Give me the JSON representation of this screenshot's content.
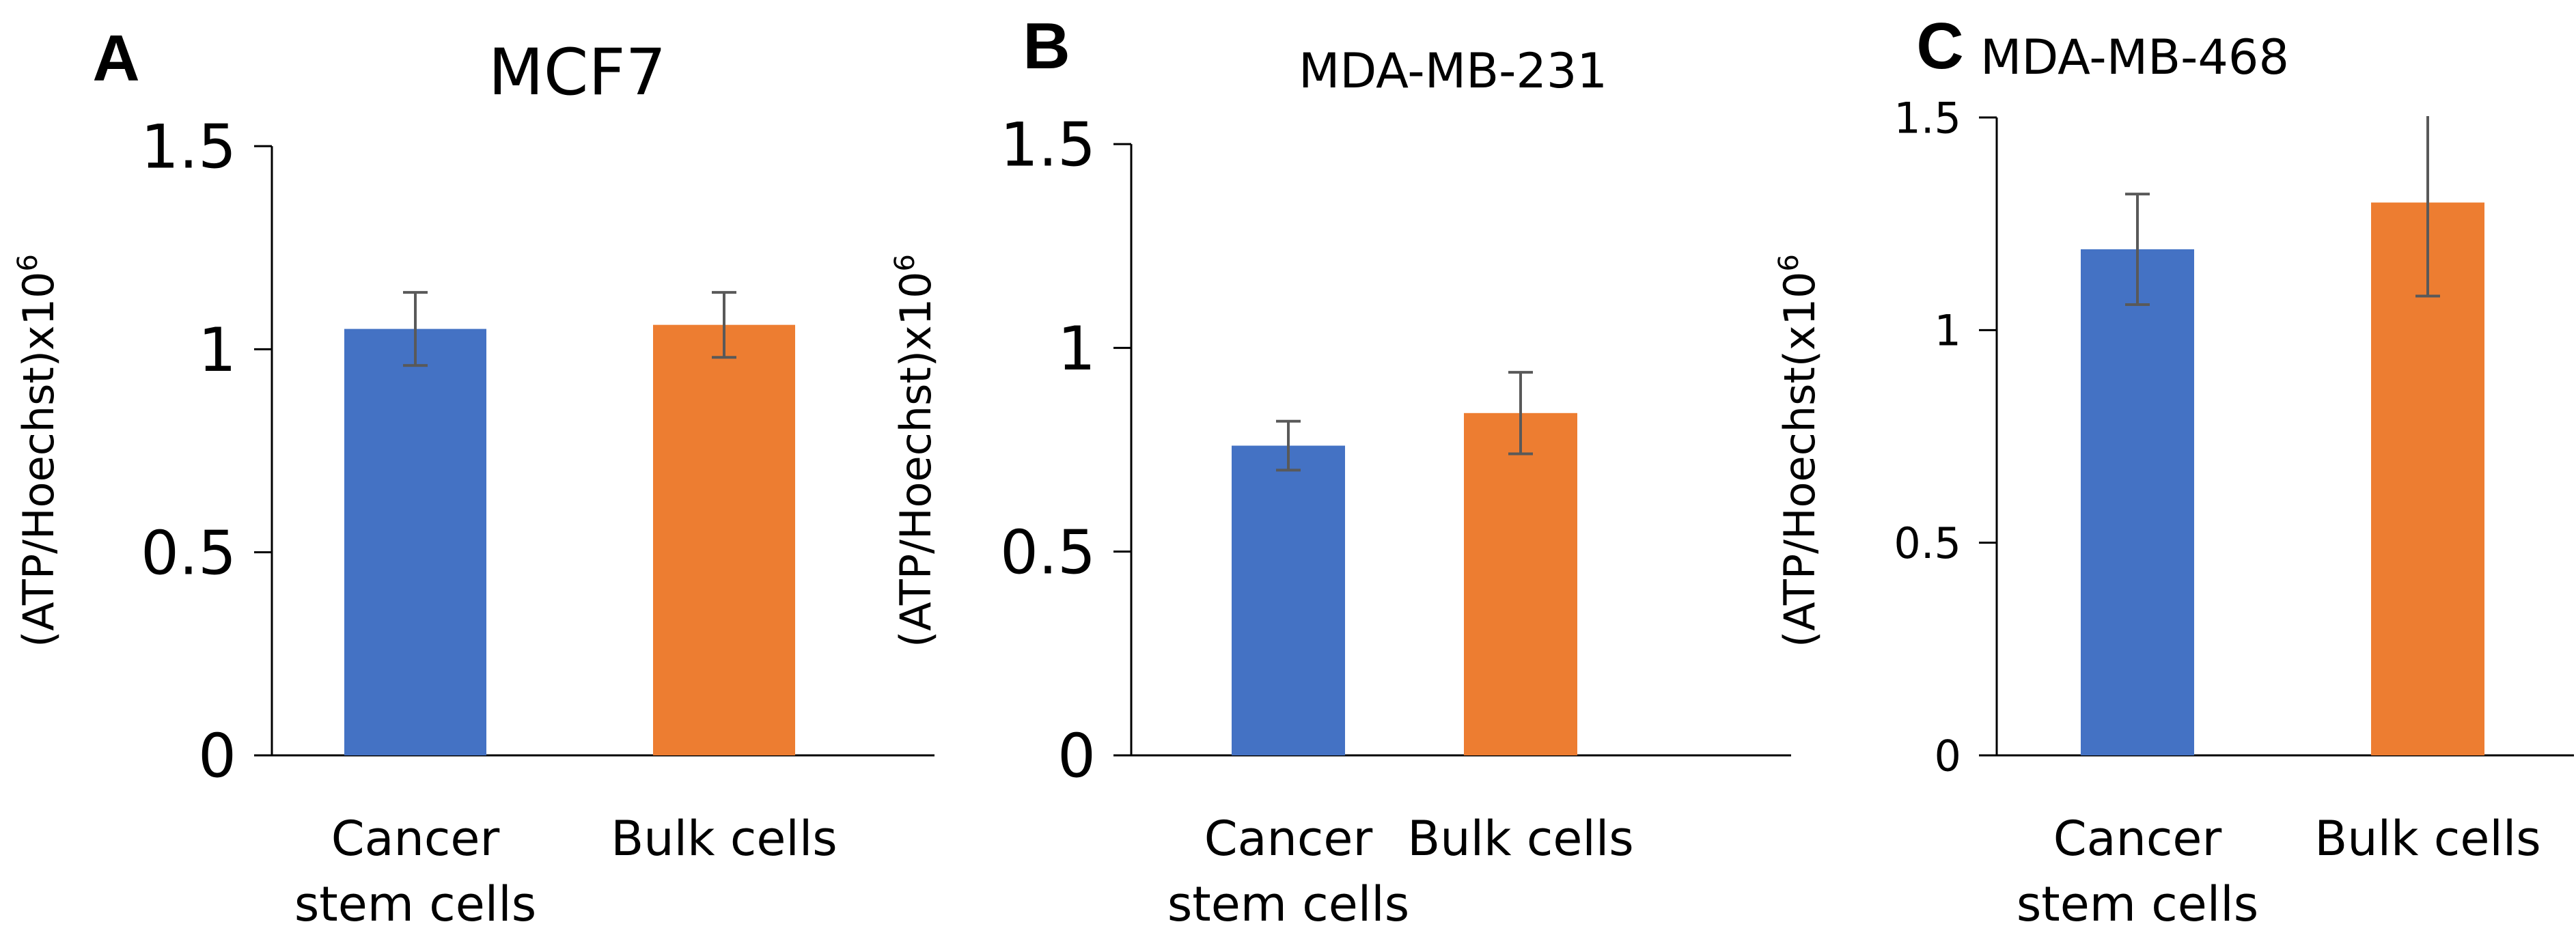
{
  "chart_data": [
    {
      "type": "bar",
      "panel": "A",
      "title": "MCF7",
      "ylabel": "(ATP/Hoechst)x10",
      "ylabel_sup": "6",
      "xlabel": "",
      "categories": [
        [
          "Cancer",
          "stem cells"
        ],
        [
          "Bulk cells"
        ]
      ],
      "values": [
        1.05,
        1.06
      ],
      "errors": [
        0.09,
        0.08
      ],
      "colors": [
        "#4472C4",
        "#ED7D31"
      ],
      "ylim": [
        0,
        1.5
      ],
      "yticks": [
        0,
        0.5,
        1,
        1.5
      ],
      "ytick_labels": [
        "0",
        "0.5",
        "1",
        "1.5"
      ],
      "grid": false
    },
    {
      "type": "bar",
      "panel": "B",
      "title": "MDA-MB-231",
      "ylabel": "(ATP/Hoechst)x10",
      "ylabel_sup": "6",
      "xlabel": "",
      "categories": [
        [
          "Cancer",
          "stem cells"
        ],
        [
          "Bulk cells"
        ]
      ],
      "values": [
        0.76,
        0.84
      ],
      "errors": [
        0.06,
        0.1
      ],
      "colors": [
        "#4472C4",
        "#ED7D31"
      ],
      "ylim": [
        0,
        1.5
      ],
      "yticks": [
        0,
        0.5,
        1,
        1.5
      ],
      "ytick_labels": [
        "0",
        "0.5",
        "1",
        "1.5"
      ],
      "grid": false
    },
    {
      "type": "bar",
      "panel": "C",
      "title": "MDA-MB-468",
      "ylabel": "(ATP/Hoechst(x10",
      "ylabel_sup": "6",
      "xlabel": "",
      "categories": [
        [
          "Cancer",
          "stem cells"
        ],
        [
          "Bulk cells"
        ]
      ],
      "values": [
        1.19,
        1.3
      ],
      "errors": [
        0.13,
        0.22
      ],
      "colors": [
        "#4472C4",
        "#ED7D31"
      ],
      "ylim": [
        0,
        1.5
      ],
      "yticks": [
        0,
        0.5,
        1,
        1.5
      ],
      "ytick_labels": [
        "0",
        "0.5",
        "1",
        "1.5"
      ],
      "grid": false
    }
  ]
}
